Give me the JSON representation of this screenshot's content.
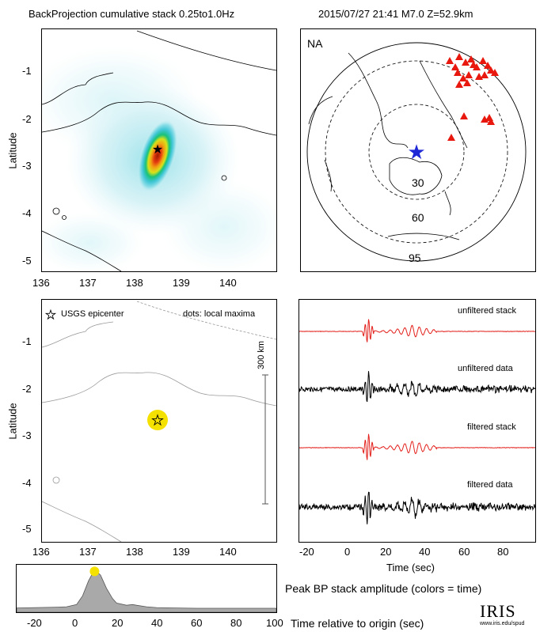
{
  "header": {
    "title": "BackProjection cumulative stack 0.25to1.0Hz",
    "event": "2015/07/27 21:41   M7.0  Z=52.9km"
  },
  "chart_data": [
    {
      "type": "heatmap",
      "panel": "backprojection-map",
      "ylabel": "Latitude",
      "xticks": [
        "136",
        "137",
        "138",
        "139",
        "140"
      ],
      "yticks": [
        "-1",
        "-2",
        "-3",
        "-4",
        "-5"
      ],
      "xlim": [
        135.8,
        140.9
      ],
      "ylim": [
        -5.2,
        -0.3
      ],
      "epicenter": {
        "lon": 138.5,
        "lat": -2.65
      },
      "colormap": [
        "#ffffff",
        "#d8f3f6",
        "#8fdfe8",
        "#40c6d6",
        "#19c27a",
        "#d8e21a",
        "#f2a012",
        "#e33b10",
        "#9e1a00"
      ]
    },
    {
      "type": "scatter",
      "panel": "station-map",
      "label": "NA",
      "rings": [
        "30",
        "60",
        "95"
      ],
      "stations_color": "#e8180e",
      "source_color": "#1f2ad6"
    },
    {
      "type": "scatter",
      "panel": "local-maxima",
      "ylabel": "Latitude",
      "legend_star": "USGS epicenter",
      "legend_dots": "dots: local maxima",
      "scale_label": "300 km",
      "xticks": [
        "136",
        "137",
        "138",
        "139",
        "140"
      ],
      "yticks": [
        "-1",
        "-2",
        "-3",
        "-4",
        "-5"
      ],
      "xlim": [
        135.8,
        140.9
      ],
      "ylim": [
        -5.2,
        -0.3
      ],
      "epicenter": {
        "lon": 138.5,
        "lat": -2.65
      },
      "maximum": {
        "lon": 138.5,
        "lat": -2.65,
        "color": "#f5e100"
      }
    },
    {
      "type": "line",
      "panel": "seismograms",
      "xlabel": "Time (sec)",
      "xticks": [
        "-20",
        "0",
        "20",
        "40",
        "60",
        "80"
      ],
      "xlim": [
        -25,
        95
      ],
      "series": [
        {
          "name": "unfiltered stack",
          "color": "#e3201b"
        },
        {
          "name": "unfiltered data",
          "color": "#000000"
        },
        {
          "name": "filtered stack",
          "color": "#e3201b"
        },
        {
          "name": "filtered data",
          "color": "#000000"
        }
      ]
    },
    {
      "type": "area",
      "panel": "peak-amplitude",
      "title": "Peak BP stack amplitude (colors = time)",
      "xlabel": "Time relative to origin (sec)",
      "xticks": [
        "-20",
        "0",
        "20",
        "40",
        "60",
        "80",
        "100"
      ],
      "xlim": [
        -30,
        100
      ],
      "x": [
        -30,
        -20,
        -10,
        -5,
        0,
        3,
        6,
        8,
        10,
        12,
        15,
        18,
        20,
        25,
        28,
        30,
        35,
        40,
        50,
        60,
        80,
        100
      ],
      "y": [
        0.03,
        0.04,
        0.05,
        0.06,
        0.12,
        0.35,
        0.75,
        0.95,
        1.0,
        0.9,
        0.55,
        0.28,
        0.16,
        0.1,
        0.12,
        0.1,
        0.06,
        0.04,
        0.03,
        0.02,
        0.02,
        0.02
      ],
      "ylim": [
        0,
        1.05
      ],
      "fill": "#a9a9a9",
      "peak": {
        "x": 9,
        "color": "#f5e100"
      }
    }
  ],
  "footer": {
    "logo": "IRIS",
    "url": "www.iris.edu/spud"
  }
}
